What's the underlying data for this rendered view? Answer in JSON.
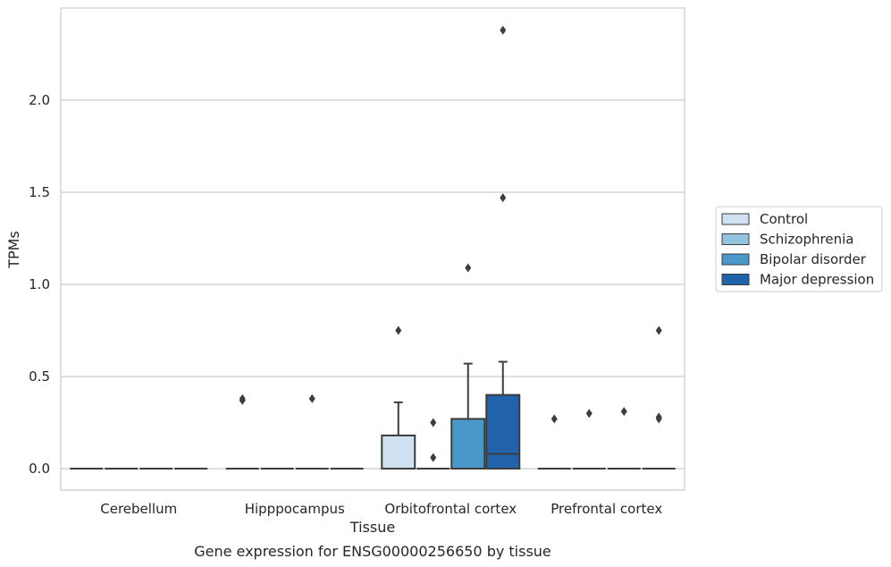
{
  "chart_data": {
    "type": "box",
    "title": "",
    "caption": "Gene expression for ENSG00000256650 by tissue",
    "xlabel": "Tissue",
    "ylabel": "TPMs",
    "ylim": [
      -0.12,
      2.52
    ],
    "yticks": [
      0.0,
      0.5,
      1.0,
      1.5,
      2.0
    ],
    "ytick_labels": [
      "0.0",
      "0.5",
      "1.0",
      "1.5",
      "2.0"
    ],
    "grid": true,
    "legend_position": "right",
    "categories": [
      "Cerebellum",
      "Hipppocampus",
      "Orbitofrontal cortex",
      "Prefrontal cortex"
    ],
    "series": [
      {
        "name": "Control",
        "color": "#cfe1f2",
        "boxes": [
          {
            "q1": 0,
            "median": 0,
            "q3": 0,
            "whisker_low": 0,
            "whisker_high": 0,
            "outliers": []
          },
          {
            "q1": 0,
            "median": 0,
            "q3": 0,
            "whisker_low": 0,
            "whisker_high": 0,
            "outliers": [
              0.37,
              0.38
            ]
          },
          {
            "q1": 0,
            "median": 0,
            "q3": 0.18,
            "whisker_low": 0,
            "whisker_high": 0.36,
            "outliers": [
              0.75
            ]
          },
          {
            "q1": 0,
            "median": 0,
            "q3": 0,
            "whisker_low": 0,
            "whisker_high": 0,
            "outliers": [
              0.27
            ]
          }
        ]
      },
      {
        "name": "Schizophrenia",
        "color": "#93c4de",
        "boxes": [
          {
            "q1": 0,
            "median": 0,
            "q3": 0,
            "whisker_low": 0,
            "whisker_high": 0,
            "outliers": []
          },
          {
            "q1": 0,
            "median": 0,
            "q3": 0,
            "whisker_low": 0,
            "whisker_high": 0,
            "outliers": []
          },
          {
            "q1": 0,
            "median": 0,
            "q3": 0,
            "whisker_low": 0,
            "whisker_high": 0,
            "outliers": [
              0.06,
              0.25
            ]
          },
          {
            "q1": 0,
            "median": 0,
            "q3": 0,
            "whisker_low": 0,
            "whisker_high": 0,
            "outliers": [
              0.3
            ]
          }
        ]
      },
      {
        "name": "Bipolar disorder",
        "color": "#4a98c9",
        "boxes": [
          {
            "q1": 0,
            "median": 0,
            "q3": 0,
            "whisker_low": 0,
            "whisker_high": 0,
            "outliers": []
          },
          {
            "q1": 0,
            "median": 0,
            "q3": 0,
            "whisker_low": 0,
            "whisker_high": 0,
            "outliers": [
              0.38
            ]
          },
          {
            "q1": 0,
            "median": 0,
            "q3": 0.27,
            "whisker_low": 0,
            "whisker_high": 0.57,
            "outliers": [
              1.09
            ]
          },
          {
            "q1": 0,
            "median": 0,
            "q3": 0,
            "whisker_low": 0,
            "whisker_high": 0,
            "outliers": [
              0.31
            ]
          }
        ]
      },
      {
        "name": "Major depression",
        "color": "#2163aa",
        "boxes": [
          {
            "q1": 0,
            "median": 0,
            "q3": 0,
            "whisker_low": 0,
            "whisker_high": 0,
            "outliers": []
          },
          {
            "q1": 0,
            "median": 0,
            "q3": 0,
            "whisker_low": 0,
            "whisker_high": 0,
            "outliers": []
          },
          {
            "q1": 0,
            "median": 0.08,
            "q3": 0.4,
            "whisker_low": 0,
            "whisker_high": 0.58,
            "outliers": [
              1.47,
              2.38
            ]
          },
          {
            "q1": 0,
            "median": 0,
            "q3": 0,
            "whisker_low": 0,
            "whisker_high": 0,
            "outliers": [
              0.27,
              0.28,
              0.75
            ]
          }
        ]
      }
    ]
  }
}
